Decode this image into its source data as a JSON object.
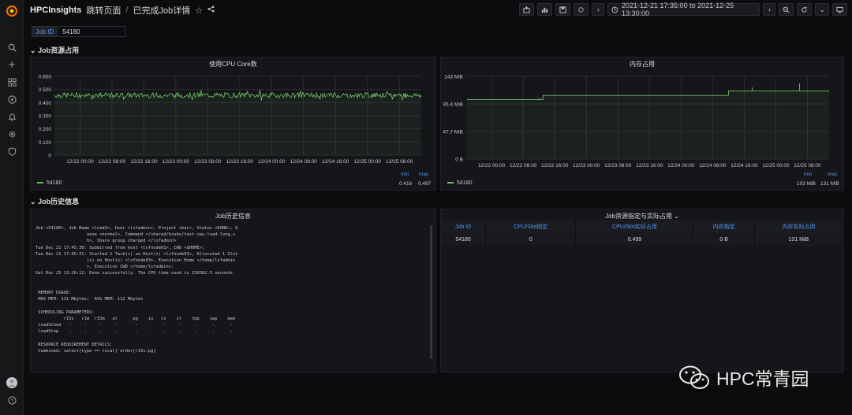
{
  "header": {
    "app": "HPCInsights",
    "breadcrumb_parent": "跳转页面",
    "separator": "/",
    "breadcrumb_current": "已完成Job详情",
    "time_range": "2021-12-21 17:35:00 to 2021-12-25 13:30:00"
  },
  "variable": {
    "label": "Job ID",
    "value": "54180"
  },
  "sections": {
    "resources": "Job资源占用",
    "history": "Job历史信息"
  },
  "cpu_panel": {
    "title": "使用CPU Core数",
    "legend": "54180",
    "min_label": "min",
    "max_label": "max",
    "min": "0.416",
    "max": "0.497"
  },
  "mem_panel": {
    "title": "内存占用",
    "legend": "54180",
    "min_label": "min",
    "max_label": "max",
    "min": "103 MiB",
    "max": "131 MiB"
  },
  "log_panel": {
    "title": "Job历史信息"
  },
  "table_panel": {
    "title": "Job资源指定与实际占用",
    "headers": [
      "Job ID",
      "CPU/Slot指定",
      "CPU/Slot实际占用",
      "内存指定",
      "内存实际占用"
    ],
    "row": [
      "54180",
      "0",
      "0.499",
      "0 B",
      "131 MiB"
    ]
  },
  "log_text": "Job <54180>, Job Name <load2>, User <lsfadmin>, Project <bar>, Status <DONE>, Q\n                    ueue <normal>, Command </shared/bsubs/test-cpu-load-long.s\n                    h>, Share group charged </lsfadmin>\nTue Dec 21 17:45:30: Submitted from host <lsfnode01>, CWD <$HOME>;\nTue Dec 21 17:45:31: Started 1 Task(s) on Host(s) <lsfnode03>, Allocated 1 Slot\n                    (s) on Host(s) <lsfnode03>, Execution Home </home/lsfadmin\n                    >, Execution CWD </home/lsfadmin>;\nSat Dec 25 13:20:12: Done successfully. The CPU time used is 150382.5 seconds.\n\n\n MEMORY USAGE:\n MAX MEM: 131 Mbytes;  AVG MEM: 112 Mbytes\n\n SCHEDULING PARAMETERS:\n           r15s   r1m  r15m   ut      pg    io   ls    it    tmp    swp    mem\n loadSched   -     -     -     -       -     -    -     -     -      -      -\n loadStop    -     -     -     -       -     -    -     -     -      -      -\n\n RESOURCE REQUIREMENT DETAILS:\n Combined: select[type == local] order[r15s:pg]",
  "chart_data": [
    {
      "type": "line",
      "title": "使用CPU Core数",
      "xlabel": "",
      "ylabel": "",
      "x_ticks": [
        "12/22 00:00",
        "12/22 08:00",
        "12/22 16:00",
        "12/23 00:00",
        "12/23 08:00",
        "12/23 16:00",
        "12/24 00:00",
        "12/24 08:00",
        "12/24 16:00",
        "12/25 00:00",
        "12/25 08:00"
      ],
      "y_ticks": [
        "0.600",
        "0.500",
        "0.400",
        "0.300",
        "0.200",
        "0.100",
        "0"
      ],
      "ylim": [
        0,
        0.6
      ],
      "series": [
        {
          "name": "54180",
          "min": 0.416,
          "max": 0.497,
          "typical": 0.46
        }
      ],
      "grid": true
    },
    {
      "type": "line",
      "title": "内存占用",
      "xlabel": "",
      "ylabel": "",
      "x_ticks": [
        "12/22 00:00",
        "12/22 08:00",
        "12/22 16:00",
        "12/23 00:00",
        "12/23 08:00",
        "12/23 16:00",
        "12/24 00:00",
        "12/24 08:00",
        "12/24 16:00",
        "12/25 00:00",
        "12/25 08:00"
      ],
      "y_ticks": [
        "143 MiB",
        "95.4 MiB",
        "47.7 MiB",
        "0 B"
      ],
      "ylim": [
        0,
        143
      ],
      "series": [
        {
          "name": "54180",
          "steps": [
            {
              "x": "12/21 17:45",
              "y": 103
            },
            {
              "x": "12/22 13:00",
              "y": 110
            },
            {
              "x": "12/24 12:00",
              "y": 118
            }
          ],
          "spikes": [
            {
              "x": "12/22 12:00",
              "y": 106
            },
            {
              "x": "12/24 18:00",
              "y": 124
            },
            {
              "x": "12/25 06:00",
              "y": 131
            }
          ]
        }
      ],
      "grid": true
    }
  ],
  "watermark": "HPC常青园"
}
